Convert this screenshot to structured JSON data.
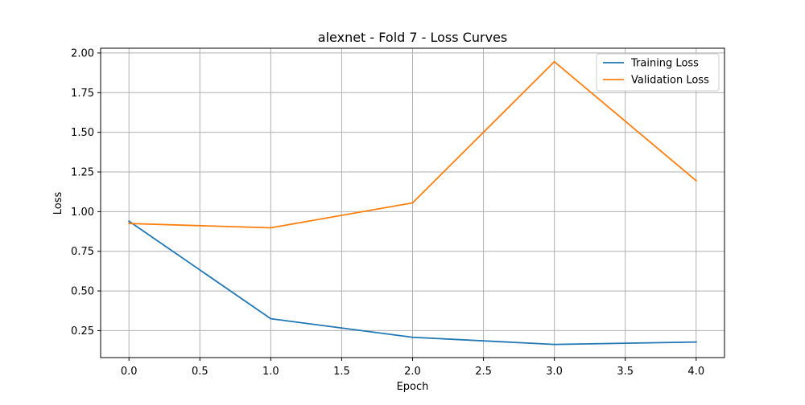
{
  "chart_data": {
    "type": "line",
    "title": "alexnet - Fold 7 - Loss Curves",
    "xlabel": "Epoch",
    "ylabel": "Loss",
    "x": [
      0,
      1,
      2,
      3,
      4
    ],
    "xlim": [
      -0.2,
      4.2
    ],
    "ylim": [
      0.08,
      2.03
    ],
    "xticks": [
      0.0,
      0.5,
      1.0,
      1.5,
      2.0,
      2.5,
      3.0,
      3.5,
      4.0
    ],
    "xtick_labels": [
      "0.0",
      "0.5",
      "1.0",
      "1.5",
      "2.0",
      "2.5",
      "3.0",
      "3.5",
      "4.0"
    ],
    "yticks": [
      0.25,
      0.5,
      0.75,
      1.0,
      1.25,
      1.5,
      1.75,
      2.0
    ],
    "ytick_labels": [
      "0.25",
      "0.50",
      "0.75",
      "1.00",
      "1.25",
      "1.50",
      "1.75",
      "2.00"
    ],
    "grid": true,
    "legend_position": "top-right",
    "series": [
      {
        "name": "Training Loss",
        "color": "#1f77b4",
        "values": [
          0.94,
          0.325,
          0.208,
          0.163,
          0.178
        ]
      },
      {
        "name": "Validation Loss",
        "color": "#ff7f0e",
        "values": [
          0.925,
          0.898,
          1.055,
          1.945,
          1.195
        ]
      }
    ]
  }
}
